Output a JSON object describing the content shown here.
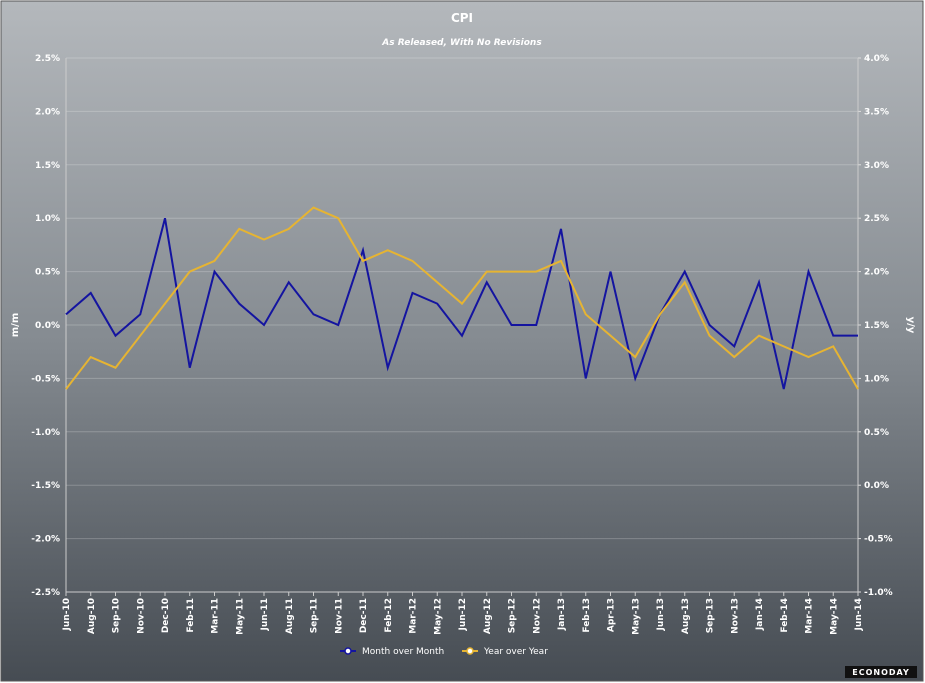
{
  "chart_data": {
    "type": "line",
    "title": "CPI",
    "subtitle": "As Released, With No Revisions",
    "ylabel": "m/m",
    "y2label": "y/y",
    "brand": "ECONODAY",
    "categories": [
      "Jun-10",
      "Aug-10",
      "Sep-10",
      "Nov-10",
      "Dec-10",
      "Feb-11",
      "Mar-11",
      "May-11",
      "Jun-11",
      "Aug-11",
      "Sep-11",
      "Nov-11",
      "Dec-11",
      "Feb-12",
      "Mar-12",
      "May-12",
      "Jun-12",
      "Aug-12",
      "Sep-12",
      "Nov-12",
      "Jan-13",
      "Feb-13",
      "Apr-13",
      "May-13",
      "Jun-13",
      "Aug-13",
      "Sep-13",
      "Nov-13",
      "Jan-14",
      "Feb-14",
      "Mar-14",
      "May-14",
      "Jun-14"
    ],
    "series": [
      {
        "name": "Month over Month",
        "color": "#1414a0",
        "values": [
          0.1,
          0.3,
          -0.1,
          0.1,
          1.0,
          -0.4,
          0.5,
          0.2,
          0.0,
          0.4,
          0.1,
          0.0,
          0.7,
          -0.4,
          0.3,
          0.2,
          -0.1,
          0.4,
          0.0,
          0.0,
          0.9,
          -0.5,
          0.5,
          -0.5,
          0.1,
          0.5,
          0.0,
          -0.2,
          0.4,
          -0.6,
          0.5,
          -0.1,
          -0.1
        ]
      },
      {
        "name": "Year over Year",
        "color": "#e6b432",
        "axis": "y2",
        "values": [
          0.9,
          1.2,
          1.1,
          1.4,
          1.7,
          2.0,
          2.1,
          2.4,
          2.3,
          2.4,
          2.6,
          2.5,
          2.1,
          2.2,
          2.1,
          1.9,
          1.7,
          2.0,
          2.0,
          2.0,
          2.1,
          1.6,
          1.4,
          1.2,
          1.6,
          1.9,
          1.4,
          1.2,
          1.4,
          1.3,
          1.2,
          1.3,
          0.9
        ]
      }
    ],
    "ylim": [
      -2.5,
      2.5
    ],
    "yticks": [
      {
        "value": -2.5,
        "label": "-2.5%"
      },
      {
        "value": -2.0,
        "label": "-2.0%"
      },
      {
        "value": -1.5,
        "label": "-1.5%"
      },
      {
        "value": -1.0,
        "label": "-1.0%"
      },
      {
        "value": -0.5,
        "label": "-0.5%"
      },
      {
        "value": 0.0,
        "label": "0.0%"
      },
      {
        "value": 0.5,
        "label": "0.5%"
      },
      {
        "value": 1.0,
        "label": "1.0%"
      },
      {
        "value": 1.5,
        "label": "1.5%"
      },
      {
        "value": 2.0,
        "label": "2.0%"
      },
      {
        "value": 2.5,
        "label": "2.5%"
      }
    ],
    "y2lim": [
      -1.0,
      4.0
    ],
    "y2ticks": [
      {
        "value": -1.0,
        "label": "-1.0%"
      },
      {
        "value": -0.5,
        "label": "-0.5%"
      },
      {
        "value": 0.0,
        "label": "0.0%"
      },
      {
        "value": 0.5,
        "label": "0.5%"
      },
      {
        "value": 1.0,
        "label": "1.0%"
      },
      {
        "value": 1.5,
        "label": "1.5%"
      },
      {
        "value": 2.0,
        "label": "2.0%"
      },
      {
        "value": 2.5,
        "label": "2.5%"
      },
      {
        "value": 3.0,
        "label": "3.0%"
      },
      {
        "value": 3.5,
        "label": "3.5%"
      },
      {
        "value": 4.0,
        "label": "4.0%"
      }
    ],
    "grid": true,
    "legend": "bottom"
  }
}
